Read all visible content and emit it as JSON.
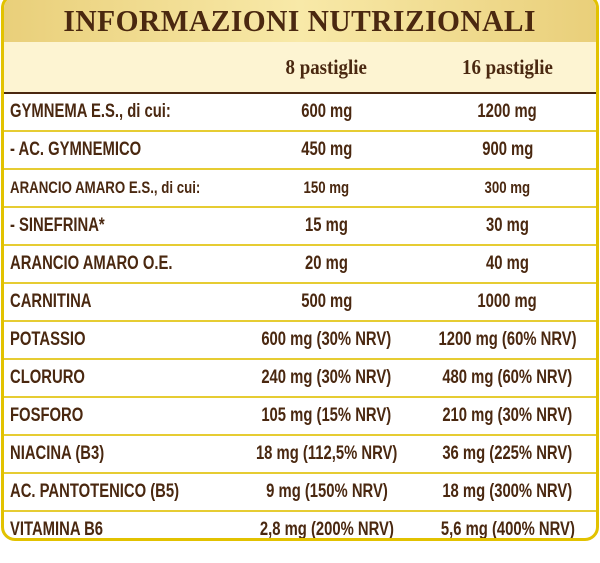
{
  "title": "INFORMAZIONI NUTRIZIONALI",
  "columns": [
    "",
    "8 pastiglie",
    "16 pastiglie"
  ],
  "rows": [
    {
      "name": "GYMNEMA E.S., di cui:",
      "v8": "600 mg",
      "v16": "1200 mg"
    },
    {
      "name": " - AC. GYMNEMICO",
      "v8": "450 mg",
      "v16": "900 mg"
    },
    {
      "name": "ARANCIO AMARO E.S., di cui:",
      "v8": "150 mg",
      "v16": "300 mg"
    },
    {
      "name": " - SINEFRINA*",
      "v8": "15 mg",
      "v16": "30 mg"
    },
    {
      "name": "ARANCIO AMARO O.E.",
      "v8": "20 mg",
      "v16": "40 mg"
    },
    {
      "name": "CARNITINA",
      "v8": "500 mg",
      "v16": "1000 mg"
    },
    {
      "name": "POTASSIO",
      "v8": "600 mg (30% NRV)",
      "v16": "1200 mg (60% NRV)"
    },
    {
      "name": "CLORURO",
      "v8": "240 mg (30% NRV)",
      "v16": "480 mg (60% NRV)"
    },
    {
      "name": "FOSFORO",
      "v8": "105 mg (15% NRV)",
      "v16": "210 mg (30% NRV)"
    },
    {
      "name": "NIACINA (B3)",
      "v8": "18 mg (112,5% NRV)",
      "v16": "36 mg (225% NRV)"
    },
    {
      "name": "AC. PANTOTENICO (B5)",
      "v8": "9 mg (150% NRV)",
      "v16": "18 mg (300% NRV)"
    },
    {
      "name": "VITAMINA B6",
      "v8": "2,8 mg (200% NRV)",
      "v16": "5,6 mg (400% NRV)"
    }
  ],
  "colors": {
    "border": "#e2c200",
    "text": "#4a2810",
    "header_bg": "#fdf4d2",
    "title_bg": "#f3e09a"
  }
}
